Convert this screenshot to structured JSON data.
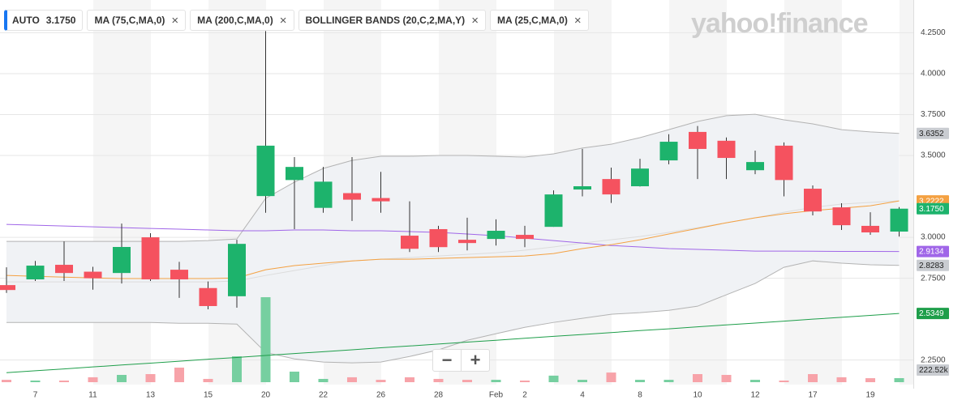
{
  "chart_data": {
    "type": "candlestick",
    "ticker": "AUTO",
    "last_close_label": "3.1750",
    "logo": "yahoo!finance",
    "indicators": [
      "MA (75,C,MA,0)",
      "MA (200,C,MA,0)",
      "BOLLINGER BANDS (20,C,2,MA,Y)",
      "MA (25,C,MA,0)"
    ],
    "categories": [
      null,
      "7",
      null,
      "11",
      null,
      "13",
      null,
      "15",
      null,
      "20",
      null,
      "22",
      null,
      "26",
      null,
      "28",
      null,
      "Feb",
      "2",
      null,
      "4",
      null,
      "8",
      null,
      "10",
      null,
      "12",
      null,
      "17",
      null,
      "19",
      null
    ],
    "open": [
      2.708,
      2.743,
      2.832,
      2.79,
      2.782,
      3.0,
      2.802,
      2.69,
      2.64,
      3.252,
      3.35,
      3.18,
      3.27,
      3.24,
      3.01,
      3.05,
      2.985,
      2.99,
      3.015,
      3.064,
      3.292,
      3.356,
      3.312,
      3.47,
      3.644,
      3.59,
      3.41,
      3.56,
      3.297,
      3.183,
      3.07,
      3.035
    ],
    "high": [
      2.817,
      2.856,
      2.975,
      2.82,
      3.084,
      3.025,
      2.85,
      2.73,
      2.985,
      4.26,
      3.49,
      3.43,
      3.49,
      3.4,
      3.22,
      3.07,
      3.12,
      3.11,
      3.07,
      3.287,
      3.54,
      3.426,
      3.48,
      3.63,
      3.68,
      3.61,
      3.53,
      3.58,
      3.317,
      3.208,
      3.153,
      3.185
    ],
    "low": [
      2.66,
      2.733,
      2.733,
      2.68,
      2.718,
      2.733,
      2.63,
      2.56,
      2.57,
      3.15,
      3.05,
      3.15,
      3.1,
      3.15,
      2.91,
      2.91,
      2.92,
      2.95,
      2.94,
      3.064,
      3.25,
      3.21,
      3.31,
      3.446,
      3.356,
      3.356,
      3.386,
      3.25,
      3.134,
      3.045,
      3.015,
      3.005
    ],
    "close": [
      2.678,
      2.827,
      2.782,
      2.75,
      2.941,
      2.743,
      2.743,
      2.58,
      2.96,
      3.56,
      3.43,
      3.34,
      3.23,
      3.22,
      2.93,
      2.94,
      2.965,
      3.04,
      2.99,
      3.262,
      3.312,
      3.262,
      3.42,
      3.584,
      3.54,
      3.485,
      3.46,
      3.35,
      3.158,
      3.074,
      3.03,
      3.175
    ],
    "up_color": "#1db36c",
    "down_color": "#f5525f",
    "volume": {
      "values": [
        130,
        90,
        90,
        270,
        400,
        445,
        800,
        180,
        1420,
        4670,
        580,
        180,
        270,
        130,
        270,
        180,
        130,
        130,
        90,
        360,
        130,
        530,
        130,
        130,
        445,
        400,
        130,
        90,
        445,
        270,
        220,
        222.52
      ],
      "last_label": "222.52k",
      "up_color": "#76cfa0",
      "down_color": "#f7a3a9",
      "ylim": [
        0,
        21000
      ]
    },
    "band": {
      "color": "#f0f2f5",
      "upper": {
        "color": "#b3b3b3",
        "last_label": "3.6352",
        "values": [
          2.975,
          2.975,
          2.975,
          2.975,
          2.975,
          2.975,
          2.975,
          2.98,
          2.99,
          3.238,
          3.337,
          3.421,
          3.47,
          3.495,
          3.495,
          3.5,
          3.5,
          3.495,
          3.49,
          3.51,
          3.545,
          3.569,
          3.609,
          3.658,
          3.708,
          3.743,
          3.752,
          3.718,
          3.693,
          3.658,
          3.644,
          3.6352
        ]
      },
      "lower": {
        "color": "#b3b3b3",
        "last_label": "2.8283",
        "values": [
          2.48,
          2.48,
          2.48,
          2.48,
          2.48,
          2.48,
          2.475,
          2.475,
          2.47,
          2.297,
          2.257,
          2.238,
          2.233,
          2.238,
          2.272,
          2.312,
          2.371,
          2.411,
          2.45,
          2.48,
          2.505,
          2.53,
          2.54,
          2.554,
          2.579,
          2.649,
          2.718,
          2.817,
          2.856,
          2.842,
          2.832,
          2.8283
        ]
      },
      "middle": {
        "color": "#dcdcdc",
        "values": [
          2.728,
          2.728,
          2.728,
          2.728,
          2.728,
          2.728,
          2.728,
          2.728,
          2.733,
          2.767,
          2.797,
          2.827,
          2.856,
          2.866,
          2.876,
          2.886,
          2.896,
          2.906,
          2.921,
          2.941,
          2.965,
          2.985,
          3.005,
          3.03,
          3.059,
          3.089,
          3.119,
          3.153,
          3.183,
          3.203,
          3.213,
          3.223
        ]
      }
    },
    "lines": [
      {
        "color": "#a066e8",
        "last_label": "2.9134",
        "values": [
          3.079,
          3.074,
          3.069,
          3.064,
          3.059,
          3.054,
          3.05,
          3.045,
          3.04,
          3.04,
          3.045,
          3.045,
          3.04,
          3.04,
          3.035,
          3.03,
          3.02,
          3.01,
          2.995,
          2.98,
          2.965,
          2.95,
          2.941,
          2.931,
          2.926,
          2.921,
          2.916,
          2.916,
          2.915,
          2.914,
          2.914,
          2.9134
        ]
      },
      {
        "color": "#1e9e4a",
        "last_label": "2.5349",
        "values": [
          2.173,
          2.185,
          2.196,
          2.208,
          2.22,
          2.231,
          2.243,
          2.255,
          2.266,
          2.278,
          2.29,
          2.301,
          2.313,
          2.325,
          2.336,
          2.348,
          2.36,
          2.371,
          2.383,
          2.395,
          2.406,
          2.418,
          2.43,
          2.441,
          2.453,
          2.465,
          2.476,
          2.488,
          2.5,
          2.511,
          2.523,
          2.5349
        ]
      },
      {
        "color": "#f4a142",
        "last_label": "3.2222",
        "values": [
          2.767,
          2.762,
          2.757,
          2.752,
          2.748,
          2.748,
          2.748,
          2.748,
          2.752,
          2.802,
          2.827,
          2.842,
          2.856,
          2.866,
          2.866,
          2.871,
          2.876,
          2.881,
          2.886,
          2.901,
          2.931,
          2.955,
          2.985,
          3.02,
          3.054,
          3.089,
          3.119,
          3.144,
          3.163,
          3.178,
          3.193,
          3.2222
        ]
      }
    ],
    "ylim": [
      2.1,
      4.45
    ],
    "yticks": [
      {
        "value": 4.25,
        "label": "4.2500"
      },
      {
        "value": 4.0,
        "label": "4.0000"
      },
      {
        "value": 3.75,
        "label": "3.7500"
      },
      {
        "value": 3.5,
        "label": "3.5000"
      },
      {
        "value": 3.0,
        "label": "3.0000"
      },
      {
        "value": 2.75,
        "label": "2.7500"
      },
      {
        "value": 2.25,
        "label": "2.2500"
      }
    ],
    "grid": true
  }
}
